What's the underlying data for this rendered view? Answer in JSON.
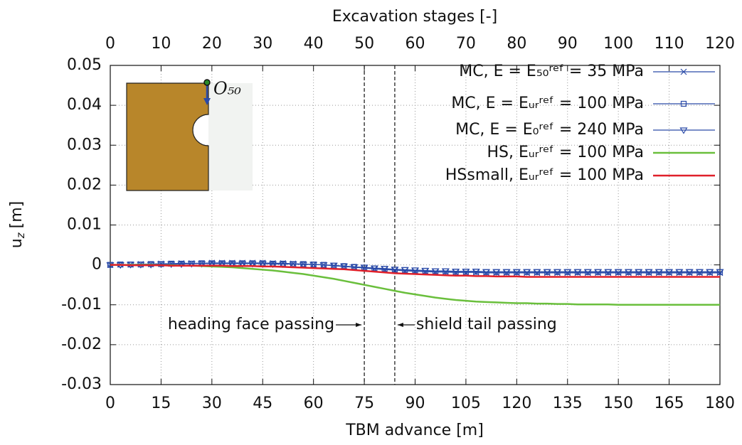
{
  "chart_data": {
    "type": "line",
    "xlabel": "TBM advance [m]",
    "x2label": "Excavation stages [-]",
    "ylabel": {
      "base": "u",
      "subscript": "z",
      "unit": "[m]"
    },
    "inset_label": "O₅₀",
    "xlim": [
      0,
      180
    ],
    "xticks": [
      0,
      15,
      30,
      45,
      60,
      75,
      90,
      105,
      120,
      135,
      150,
      165,
      180
    ],
    "x2lim": [
      0,
      120
    ],
    "x2ticks": [
      0,
      10,
      20,
      30,
      40,
      50,
      60,
      70,
      80,
      90,
      100,
      110,
      120
    ],
    "ylim": [
      -0.03,
      0.05
    ],
    "yticks": [
      -0.03,
      -0.02,
      -0.01,
      0,
      0.01,
      0.02,
      0.03,
      0.04,
      0.05
    ],
    "grid": true,
    "legend": "top-right",
    "annotations": [
      {
        "text": "heading face passing",
        "x": 75,
        "side": "left"
      },
      {
        "text": "shield tail passing",
        "x": 84,
        "side": "right"
      }
    ],
    "x": [
      0,
      3,
      6,
      9,
      12,
      15,
      18,
      21,
      24,
      27,
      30,
      33,
      36,
      39,
      42,
      45,
      48,
      51,
      54,
      57,
      60,
      63,
      66,
      69,
      72,
      75,
      78,
      81,
      84,
      87,
      90,
      93,
      96,
      99,
      102,
      105,
      108,
      111,
      114,
      117,
      120,
      123,
      126,
      129,
      132,
      135,
      138,
      141,
      144,
      147,
      150,
      153,
      156,
      159,
      162,
      165,
      168,
      171,
      174,
      177,
      180
    ],
    "series": [
      {
        "name": "MC, E = E₅₀ʳᵉᶠ = 35 MPa",
        "color": "#2a4aa8",
        "marker": "x",
        "values": [
          0,
          0.0001,
          0.0001,
          0.0002,
          0.0002,
          0.0003,
          0.0003,
          0.0004,
          0.0004,
          0.0004,
          0.0005,
          0.0005,
          0.0005,
          0.0005,
          0.0005,
          0.0005,
          0.0004,
          0.0004,
          0.0003,
          0.0002,
          0.0001,
          0,
          -0.0002,
          -0.0004,
          -0.0006,
          -0.0008,
          -0.001,
          -0.0012,
          -0.0013,
          -0.0015,
          -0.0016,
          -0.0017,
          -0.0018,
          -0.0018,
          -0.0019,
          -0.0019,
          -0.0019,
          -0.002,
          -0.002,
          -0.002,
          -0.002,
          -0.002,
          -0.002,
          -0.002,
          -0.002,
          -0.002,
          -0.002,
          -0.002,
          -0.002,
          -0.002,
          -0.002,
          -0.002,
          -0.002,
          -0.002,
          -0.002,
          -0.002,
          -0.002,
          -0.002,
          -0.002,
          -0.002,
          -0.002
        ]
      },
      {
        "name": "MC, E = Eᵤᵣʳᵉᶠ = 100 MPa",
        "color": "#2a4aa8",
        "marker": "square",
        "values": [
          0,
          0.0001,
          0.0001,
          0.0001,
          0.0002,
          0.0002,
          0.0003,
          0.0003,
          0.0003,
          0.0004,
          0.0004,
          0.0004,
          0.0004,
          0.0004,
          0.0004,
          0.0004,
          0.0003,
          0.0003,
          0.0002,
          0.0002,
          0.0001,
          0,
          -0.0002,
          -0.0003,
          -0.0005,
          -0.0007,
          -0.0009,
          -0.001,
          -0.0012,
          -0.0013,
          -0.0014,
          -0.0015,
          -0.0016,
          -0.0016,
          -0.0017,
          -0.0017,
          -0.0017,
          -0.0018,
          -0.0018,
          -0.0018,
          -0.0018,
          -0.0018,
          -0.0018,
          -0.0018,
          -0.0018,
          -0.0018,
          -0.0018,
          -0.0018,
          -0.0018,
          -0.0018,
          -0.0018,
          -0.0018,
          -0.0018,
          -0.0018,
          -0.0018,
          -0.0018,
          -0.0018,
          -0.0018,
          -0.0018,
          -0.0018,
          -0.0018
        ]
      },
      {
        "name": "MC, E = E₀ʳᵉᶠ = 240 MPa",
        "color": "#2a4aa8",
        "marker": "triangle-down",
        "values": [
          0,
          0,
          0.0001,
          0.0001,
          0.0001,
          0.0002,
          0.0002,
          0.0002,
          0.0003,
          0.0003,
          0.0003,
          0.0003,
          0.0003,
          0.0003,
          0.0003,
          0.0003,
          0.0002,
          0.0002,
          0.0002,
          0.0001,
          0.0001,
          0,
          -0.0001,
          -0.0003,
          -0.0005,
          -0.0006,
          -0.0008,
          -0.0009,
          -0.0011,
          -0.0012,
          -0.0013,
          -0.0014,
          -0.0015,
          -0.0015,
          -0.0016,
          -0.0016,
          -0.0016,
          -0.0017,
          -0.0017,
          -0.0017,
          -0.0017,
          -0.0017,
          -0.0017,
          -0.0017,
          -0.0017,
          -0.0017,
          -0.0017,
          -0.0017,
          -0.0017,
          -0.0017,
          -0.0017,
          -0.0017,
          -0.0017,
          -0.0017,
          -0.0017,
          -0.0017,
          -0.0017,
          -0.0017,
          -0.0017,
          -0.0017,
          -0.0017
        ]
      },
      {
        "name": "HS, Eᵤᵣʳᵉᶠ = 100 MPa",
        "color": "#6abf3c",
        "marker": "none",
        "values": [
          0,
          0,
          0,
          0,
          0,
          -0.0001,
          -0.0001,
          -0.0002,
          -0.0002,
          -0.0003,
          -0.0004,
          -0.0005,
          -0.0006,
          -0.0008,
          -0.001,
          -0.0012,
          -0.0014,
          -0.0017,
          -0.002,
          -0.0023,
          -0.0027,
          -0.0031,
          -0.0035,
          -0.004,
          -0.0045,
          -0.005,
          -0.0055,
          -0.006,
          -0.0065,
          -0.007,
          -0.0074,
          -0.0078,
          -0.0082,
          -0.0085,
          -0.0088,
          -0.009,
          -0.0092,
          -0.0093,
          -0.0094,
          -0.0095,
          -0.0096,
          -0.0096,
          -0.0097,
          -0.0097,
          -0.0098,
          -0.0098,
          -0.0099,
          -0.0099,
          -0.0099,
          -0.0099,
          -0.01,
          -0.01,
          -0.01,
          -0.01,
          -0.01,
          -0.01,
          -0.01,
          -0.01,
          -0.01,
          -0.01,
          -0.01
        ]
      },
      {
        "name": "HSsmall, Eᵤᵣʳᵉᶠ = 100 MPa",
        "color": "#e0202a",
        "marker": "none",
        "values": [
          0,
          0,
          -0.0001,
          -0.0001,
          -0.0001,
          -0.0001,
          -0.0002,
          -0.0002,
          -0.0002,
          -0.0002,
          -0.0002,
          -0.0002,
          -0.0003,
          -0.0003,
          -0.0003,
          -0.0004,
          -0.0004,
          -0.0005,
          -0.0006,
          -0.0007,
          -0.0008,
          -0.0009,
          -0.001,
          -0.0011,
          -0.0013,
          -0.0015,
          -0.0017,
          -0.0019,
          -0.0021,
          -0.0022,
          -0.0023,
          -0.0024,
          -0.0025,
          -0.0026,
          -0.0027,
          -0.0027,
          -0.0028,
          -0.0028,
          -0.0029,
          -0.0029,
          -0.0029,
          -0.003,
          -0.003,
          -0.003,
          -0.003,
          -0.003,
          -0.003,
          -0.003,
          -0.003,
          -0.003,
          -0.003,
          -0.003,
          -0.003,
          -0.003,
          -0.003,
          -0.003,
          -0.003,
          -0.003,
          -0.003,
          -0.003,
          -0.003
        ]
      }
    ]
  }
}
